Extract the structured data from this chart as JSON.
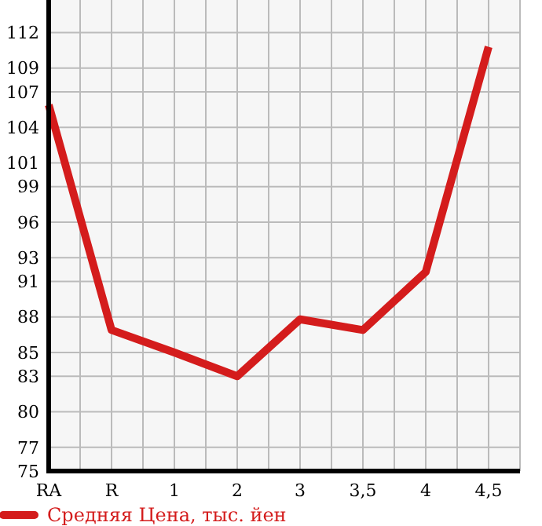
{
  "chart_data": {
    "type": "line",
    "categories": [
      "RA",
      "R",
      "1",
      "2",
      "3",
      "3,5",
      "4",
      "4,5"
    ],
    "series": [
      {
        "name": "Средняя Цена, тыс. йен",
        "color": "#d41c1c",
        "values": [
          105.9,
          86.9,
          85,
          83,
          87.8,
          86.9,
          91.8,
          110.8
        ]
      }
    ],
    "ylim": [
      75,
      114.75
    ],
    "yticks": [
      75,
      77,
      80,
      83,
      85,
      88,
      91,
      93,
      96,
      99,
      101,
      104,
      107,
      109,
      112
    ],
    "grid": true,
    "legend": "bottom",
    "marker": "none",
    "line_style": "solid"
  }
}
